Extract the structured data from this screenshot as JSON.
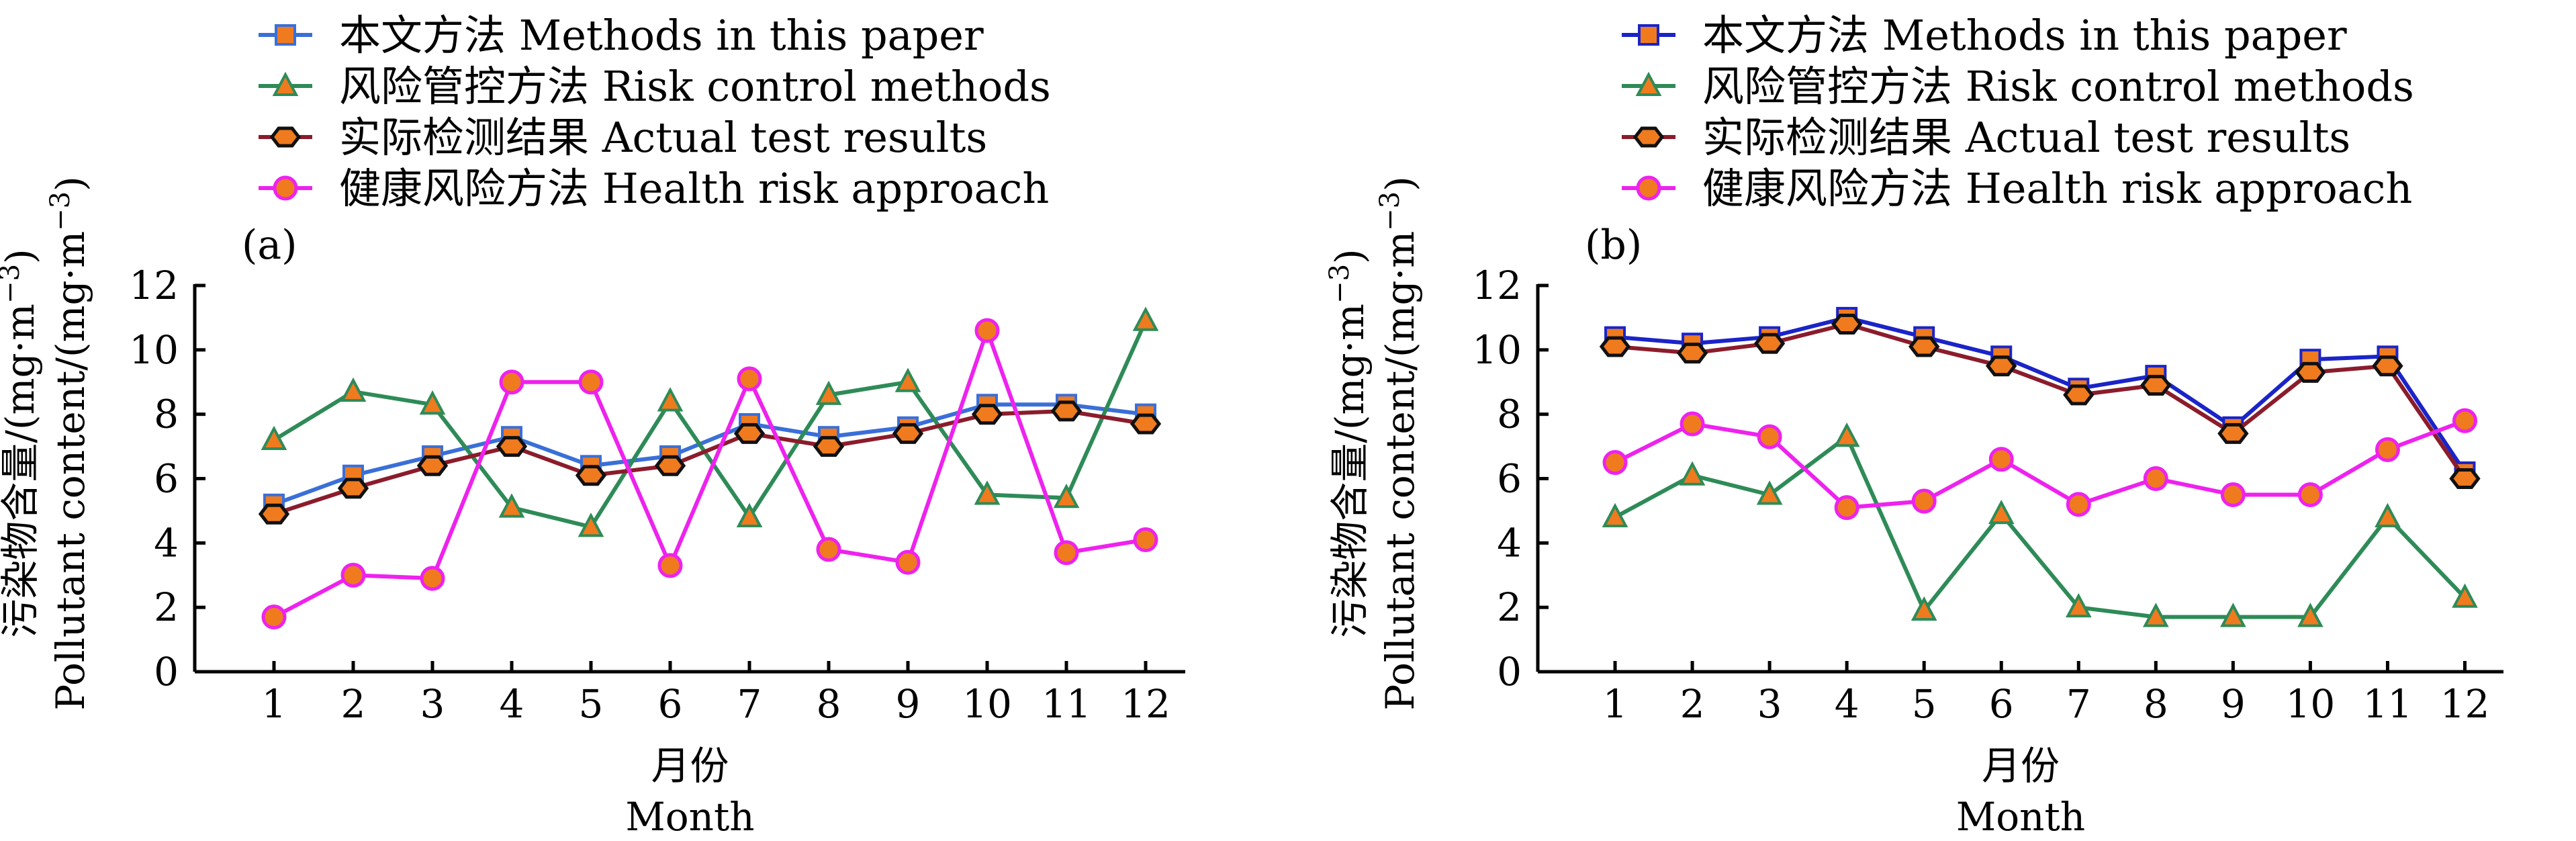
{
  "chart_data": [
    {
      "type": "line",
      "panel_label": "(a)",
      "xlabel_zh": "月份",
      "xlabel_en": "Month",
      "ylabel_zh": "污染物含量/(mg·m",
      "ylabel_en": "Pollutant content/(mg·m",
      "ylabel_sup": "−3",
      "ylabel_close": ")",
      "x": [
        1,
        2,
        3,
        4,
        5,
        6,
        7,
        8,
        9,
        10,
        11,
        12
      ],
      "ylim": [
        0,
        12
      ],
      "yticks": [
        0,
        2,
        4,
        6,
        8,
        10,
        12
      ],
      "legend_position": "top",
      "series": [
        {
          "name": "本文方法 Methods in this paper",
          "color": "#3a6fd8",
          "marker": "square",
          "values": [
            5.2,
            6.1,
            6.7,
            7.3,
            6.4,
            6.7,
            7.7,
            7.3,
            7.6,
            8.3,
            8.3,
            8.0
          ]
        },
        {
          "name": "风险管控方法 Risk control methods",
          "color": "#2e8b57",
          "marker": "triangle",
          "values": [
            7.2,
            8.7,
            8.3,
            5.1,
            4.5,
            8.4,
            4.8,
            8.6,
            9.0,
            5.5,
            5.4,
            10.9
          ]
        },
        {
          "name": "实际检测结果 Actual test results",
          "color": "#8b1c2b",
          "marker": "hexagon",
          "values": [
            4.9,
            5.7,
            6.4,
            7.0,
            6.1,
            6.4,
            7.4,
            7.0,
            7.4,
            8.0,
            8.1,
            7.7
          ]
        },
        {
          "name": "健康风险方法 Health risk approach",
          "color": "#ee22ee",
          "marker": "circle",
          "values": [
            1.7,
            3.0,
            2.9,
            9.0,
            9.0,
            3.3,
            9.1,
            3.8,
            3.4,
            10.6,
            3.7,
            4.1
          ]
        }
      ]
    },
    {
      "type": "line",
      "panel_label": "(b)",
      "xlabel_zh": "月份",
      "xlabel_en": "Month",
      "ylabel_zh": "污染物含量/(mg·m",
      "ylabel_en": "Pollutant content/(mg·m",
      "ylabel_sup": "−3",
      "ylabel_close": ")",
      "x": [
        1,
        2,
        3,
        4,
        5,
        6,
        7,
        8,
        9,
        10,
        11,
        12
      ],
      "ylim": [
        0,
        12
      ],
      "yticks": [
        0,
        2,
        4,
        6,
        8,
        10,
        12
      ],
      "legend_position": "top",
      "series": [
        {
          "name": "本文方法 Methods in this paper",
          "color": "#1a24c8",
          "marker": "square",
          "values": [
            10.4,
            10.2,
            10.4,
            11.0,
            10.4,
            9.8,
            8.8,
            9.2,
            7.6,
            9.7,
            9.8,
            6.2
          ]
        },
        {
          "name": "风险管控方法 Risk control methods",
          "color": "#2e8b57",
          "marker": "triangle",
          "values": [
            4.8,
            6.1,
            5.5,
            7.3,
            1.9,
            4.9,
            2.0,
            1.7,
            1.7,
            1.7,
            4.8,
            2.3
          ]
        },
        {
          "name": "实际检测结果 Actual test results",
          "color": "#8b1c2b",
          "marker": "hexagon",
          "values": [
            10.1,
            9.9,
            10.2,
            10.8,
            10.1,
            9.5,
            8.6,
            8.9,
            7.4,
            9.3,
            9.5,
            6.0
          ]
        },
        {
          "name": "健康风险方法 Health risk approach",
          "color": "#ee22ee",
          "marker": "circle",
          "values": [
            6.5,
            7.7,
            7.3,
            5.1,
            5.3,
            6.6,
            5.2,
            6.0,
            5.5,
            5.5,
            6.9,
            7.8
          ]
        }
      ]
    }
  ]
}
